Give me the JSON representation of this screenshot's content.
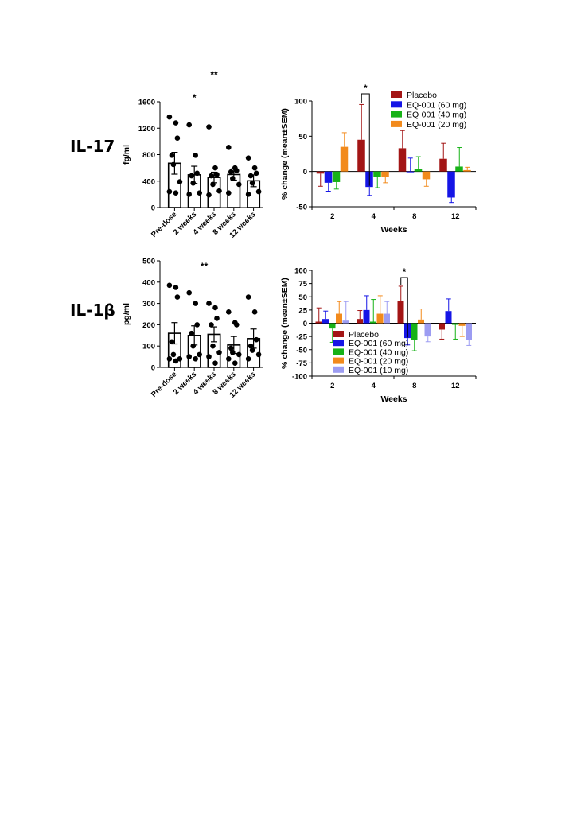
{
  "labels": {
    "row1": "IL-17",
    "row2": "IL-1β"
  },
  "colors": {
    "Placebo": "#a31515",
    "EQ-001 (60 mg)": "#1515e6",
    "EQ-001 (40 mg)": "#17b217",
    "EQ-001 (20 mg)": "#f28a1c",
    "EQ-001 (10 mg)": "#9c9cf2"
  },
  "chart_data": [
    {
      "id": "il17-abs",
      "type": "bar",
      "ylabel": "fg/ml",
      "categories": [
        "Pre-dose",
        "2 weeks",
        "4 weeks",
        "8 weeks",
        "12 weeks"
      ],
      "ylim": [
        0,
        1600
      ],
      "yticks": [
        0,
        400,
        800,
        1200,
        1600
      ],
      "means": [
        670,
        495,
        455,
        500,
        405
      ],
      "sem": [
        165,
        130,
        80,
        85,
        90
      ],
      "points": [
        [
          1370,
          1280,
          1050,
          790,
          650,
          390,
          240,
          220
        ],
        [
          1250,
          790,
          520,
          480,
          370,
          220,
          200
        ],
        [
          1220,
          600,
          500,
          480,
          350,
          250,
          190
        ],
        [
          910,
          600,
          560,
          540,
          440,
          350,
          220
        ],
        [
          750,
          600,
          520,
          480,
          370,
          240,
          200
        ]
      ],
      "significance": [
        {
          "from": 0,
          "to": 2,
          "label": "*"
        },
        {
          "from": 0,
          "to": 4,
          "label": "**"
        }
      ]
    },
    {
      "id": "il1b-abs",
      "type": "bar",
      "ylabel": "pg/ml",
      "categories": [
        "Pre-dose",
        "2 weeks",
        "4 weeks",
        "8 weeks",
        "12 weeks"
      ],
      "ylim": [
        0,
        500
      ],
      "yticks": [
        0,
        100,
        200,
        300,
        400,
        500
      ],
      "means": [
        160,
        150,
        155,
        105,
        135
      ],
      "sem": [
        50,
        45,
        35,
        40,
        45
      ],
      "points": [
        [
          385,
          375,
          330,
          120,
          60,
          40,
          40,
          30
        ],
        [
          350,
          300,
          200,
          160,
          100,
          60,
          50,
          40
        ],
        [
          300,
          280,
          230,
          200,
          100,
          70,
          50,
          20
        ],
        [
          260,
          210,
          200,
          90,
          70,
          60,
          40,
          20
        ],
        [
          330,
          260,
          130,
          100,
          80,
          60,
          40
        ]
      ],
      "significance": [
        {
          "from": 0,
          "to": 3,
          "label": "**"
        }
      ]
    },
    {
      "id": "il17-change",
      "type": "bar",
      "ylabel": "% change (mean±SEM)",
      "xlabel": "Weeks",
      "categories": [
        "2",
        "4",
        "8",
        "12"
      ],
      "ylim": [
        -50,
        100
      ],
      "yticks": [
        -50,
        0,
        50,
        100
      ],
      "legend": "top-right",
      "series": [
        {
          "name": "Placebo",
          "values": [
            -3,
            45,
            33,
            18
          ],
          "err": [
            18,
            50,
            25,
            22
          ]
        },
        {
          "name": "EQ-001 (60 mg)",
          "values": [
            -16,
            -22,
            0,
            -37
          ],
          "err": [
            12,
            12,
            19,
            7
          ]
        },
        {
          "name": "EQ-001 (40 mg)",
          "values": [
            -15,
            -8,
            4,
            7
          ],
          "err": [
            10,
            15,
            17,
            27
          ]
        },
        {
          "name": "EQ-001 (20 mg)",
          "values": [
            35,
            -8,
            -11,
            2
          ],
          "err": [
            20,
            8,
            10,
            4
          ]
        }
      ],
      "significance": [
        {
          "group": 1,
          "label": "*"
        }
      ]
    },
    {
      "id": "il1b-change",
      "type": "bar",
      "ylabel": "% change (mean±SEM)",
      "xlabel": "Weeks",
      "categories": [
        "2",
        "4",
        "8",
        "12"
      ],
      "ylim": [
        -100,
        100
      ],
      "yticks": [
        -100,
        -75,
        -50,
        -25,
        0,
        25,
        50,
        75,
        100
      ],
      "legend": "lower-left",
      "series": [
        {
          "name": "Placebo",
          "values": [
            3,
            8,
            42,
            -12
          ],
          "err": [
            26,
            16,
            28,
            18
          ]
        },
        {
          "name": "EQ-001 (60 mg)",
          "values": [
            8,
            25,
            -28,
            23
          ],
          "err": [
            15,
            27,
            13,
            23
          ]
        },
        {
          "name": "EQ-001 (40 mg)",
          "values": [
            -10,
            3,
            -32,
            -3
          ],
          "err": [
            26,
            42,
            20,
            27
          ]
        },
        {
          "name": "EQ-001 (20 mg)",
          "values": [
            18,
            18,
            7,
            -5
          ],
          "err": [
            23,
            34,
            20,
            20
          ]
        },
        {
          "name": "EQ-001 (10 mg)",
          "values": [
            5,
            18,
            -25,
            -31
          ],
          "err": [
            36,
            23,
            10,
            11
          ]
        }
      ],
      "significance": [
        {
          "group": 2,
          "label": "*"
        }
      ]
    }
  ]
}
